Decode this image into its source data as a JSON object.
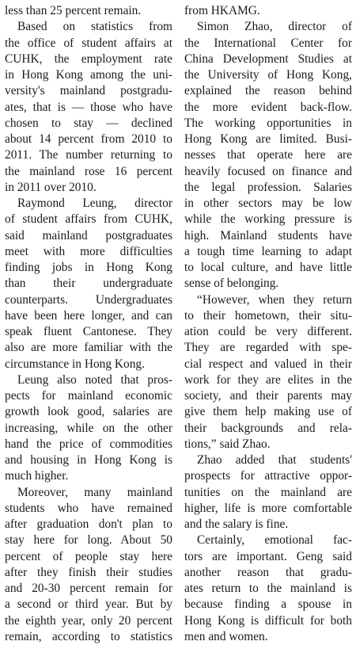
{
  "article": {
    "left_column": [
      {
        "text": "less than 25 percent remain.",
        "indent": false,
        "last": true
      },
      {
        "text": "Based on statistics from",
        "indent": true,
        "last": false
      },
      {
        "text": "the office of student affairs at",
        "indent": false,
        "last": false
      },
      {
        "text": "CUHK, the employment rate",
        "indent": false,
        "last": false
      },
      {
        "text": "in Hong Kong among the uni-",
        "indent": false,
        "last": false
      },
      {
        "text": "versity's mainland postgradu-",
        "indent": false,
        "last": false
      },
      {
        "text": "ates, that is — those who have",
        "indent": false,
        "last": false
      },
      {
        "text": "chosen to stay — declined",
        "indent": false,
        "last": false
      },
      {
        "text": "about 14 percent from 2010 to",
        "indent": false,
        "last": false
      },
      {
        "text": "2011. The number returning to",
        "indent": false,
        "last": false
      },
      {
        "text": "the mainland rose 16 percent",
        "indent": false,
        "last": false
      },
      {
        "text": "in 2011 over 2010.",
        "indent": false,
        "last": true
      },
      {
        "text": "Raymond Leung, director",
        "indent": true,
        "last": false
      },
      {
        "text": "of student affairs from CUHK,",
        "indent": false,
        "last": false
      },
      {
        "text": "said mainland postgraduates",
        "indent": false,
        "last": false
      },
      {
        "text": "meet with more difficulties",
        "indent": false,
        "last": false
      },
      {
        "text": "finding jobs in Hong Kong",
        "indent": false,
        "last": false
      },
      {
        "text": "than their undergraduate",
        "indent": false,
        "last": false
      },
      {
        "text": "counterparts. Undergraduates",
        "indent": false,
        "last": false
      },
      {
        "text": "have been here longer, and can",
        "indent": false,
        "last": false
      },
      {
        "text": "speak fluent Cantonese. They",
        "indent": false,
        "last": false
      },
      {
        "text": "also are more familiar with the",
        "indent": false,
        "last": false
      },
      {
        "text": "circumstance in Hong Kong.",
        "indent": false,
        "last": true
      },
      {
        "text": "Leung also noted that pros-",
        "indent": true,
        "last": false
      },
      {
        "text": "pects for mainland economic",
        "indent": false,
        "last": false
      },
      {
        "text": "growth look good, salaries are",
        "indent": false,
        "last": false
      },
      {
        "text": "increasing, while on the other",
        "indent": false,
        "last": false
      },
      {
        "text": "hand the price of commodities",
        "indent": false,
        "last": false
      },
      {
        "text": "and housing in Hong Kong is",
        "indent": false,
        "last": false
      },
      {
        "text": "much higher.",
        "indent": false,
        "last": true
      },
      {
        "text": "Moreover, many mainland",
        "indent": true,
        "last": false
      },
      {
        "text": "students who have remained",
        "indent": false,
        "last": false
      },
      {
        "text": "after graduation don't plan to",
        "indent": false,
        "last": false
      },
      {
        "text": "stay here for long. About 50",
        "indent": false,
        "last": false
      },
      {
        "text": "percent of people stay here",
        "indent": false,
        "last": false
      },
      {
        "text": "after they finish their studies",
        "indent": false,
        "last": false
      },
      {
        "text": "and 20-30 percent remain for",
        "indent": false,
        "last": false
      },
      {
        "text": "a second or third year. But by",
        "indent": false,
        "last": false
      },
      {
        "text": "the eighth year, only 20 percent",
        "indent": false,
        "last": false
      },
      {
        "text": "remain, according to statistics",
        "indent": false,
        "last": false
      }
    ],
    "right_column": [
      {
        "text": "from HKAMG.",
        "indent": false,
        "last": true
      },
      {
        "text": "Simon Zhao, director of",
        "indent": true,
        "last": false
      },
      {
        "text": "the International Center for",
        "indent": false,
        "last": false
      },
      {
        "text": "China Development Studies at",
        "indent": false,
        "last": false
      },
      {
        "text": "the University of Hong Kong,",
        "indent": false,
        "last": false
      },
      {
        "text": "explained the reason behind",
        "indent": false,
        "last": false
      },
      {
        "text": "the more evident back-flow.",
        "indent": false,
        "last": false
      },
      {
        "text": "The working opportunities in",
        "indent": false,
        "last": false
      },
      {
        "text": "Hong Kong are limited. Busi-",
        "indent": false,
        "last": false
      },
      {
        "text": "nesses that operate here are",
        "indent": false,
        "last": false
      },
      {
        "text": "heavily focused on finance and",
        "indent": false,
        "last": false
      },
      {
        "text": "the legal profession. Salaries",
        "indent": false,
        "last": false
      },
      {
        "text": "in other sectors may be low",
        "indent": false,
        "last": false
      },
      {
        "text": "while the working pressure is",
        "indent": false,
        "last": false
      },
      {
        "text": "high. Mainland students have",
        "indent": false,
        "last": false
      },
      {
        "text": "a tough time learning to adapt",
        "indent": false,
        "last": false
      },
      {
        "text": "to local culture, and have little",
        "indent": false,
        "last": false
      },
      {
        "text": "sense of belonging.",
        "indent": false,
        "last": true
      },
      {
        "text": "“However, when they return",
        "indent": true,
        "last": false
      },
      {
        "text": "to their hometown, their situ-",
        "indent": false,
        "last": false
      },
      {
        "text": "ation could be very different.",
        "indent": false,
        "last": false
      },
      {
        "text": "They are regarded with spe-",
        "indent": false,
        "last": false
      },
      {
        "text": "cial respect and valued in their",
        "indent": false,
        "last": false
      },
      {
        "text": "work for they are elites in the",
        "indent": false,
        "last": false
      },
      {
        "text": "society, and their parents may",
        "indent": false,
        "last": false
      },
      {
        "text": "give them help making use of",
        "indent": false,
        "last": false
      },
      {
        "text": "their backgrounds and rela-",
        "indent": false,
        "last": false
      },
      {
        "text": "tions,” said Zhao.",
        "indent": false,
        "last": true
      },
      {
        "text": "Zhao added that students'",
        "indent": true,
        "last": false
      },
      {
        "text": "prospects for attractive oppor-",
        "indent": false,
        "last": false
      },
      {
        "text": "tunities on the mainland are",
        "indent": false,
        "last": false
      },
      {
        "text": "higher, life is more comfortable",
        "indent": false,
        "last": false
      },
      {
        "text": "and the salary is fine.",
        "indent": false,
        "last": true
      },
      {
        "text": "Certainly, emotional fac-",
        "indent": true,
        "last": false
      },
      {
        "text": "tors are important. Geng said",
        "indent": false,
        "last": false
      },
      {
        "text": "another reason that gradu-",
        "indent": false,
        "last": false
      },
      {
        "text": "ates return to the mainland is",
        "indent": false,
        "last": false
      },
      {
        "text": "because finding a spouse in",
        "indent": false,
        "last": false
      },
      {
        "text": "Hong Kong is difficult for both",
        "indent": false,
        "last": false
      },
      {
        "text": "men and women.",
        "indent": false,
        "last": true
      }
    ]
  }
}
